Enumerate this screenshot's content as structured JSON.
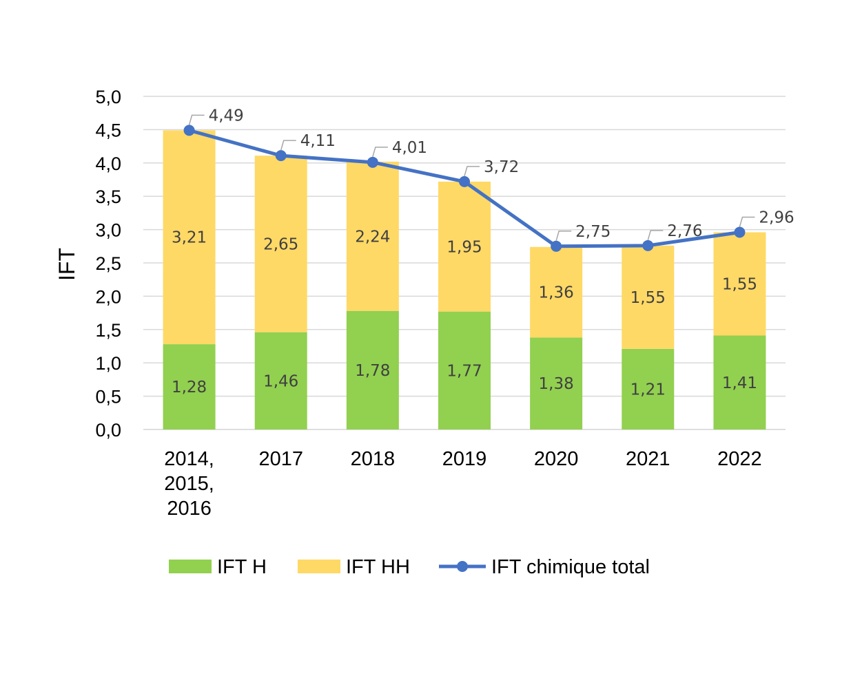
{
  "chart_data": {
    "type": "bar",
    "stacked": true,
    "title": "",
    "xlabel": "",
    "ylabel": "IFT",
    "ylim": [
      0,
      5
    ],
    "yticks": [
      "0,0",
      "0,5",
      "1,0",
      "1,5",
      "2,0",
      "2,5",
      "3,0",
      "3,5",
      "4,0",
      "4,5",
      "5,0"
    ],
    "grid": true,
    "legend_position": "bottom",
    "categories": [
      [
        "2014,",
        "2015,",
        "2016"
      ],
      [
        "2017"
      ],
      [
        "2018"
      ],
      [
        "2019"
      ],
      [
        "2020"
      ],
      [
        "2021"
      ],
      [
        "2022"
      ]
    ],
    "series": [
      {
        "name": "IFT H",
        "kind": "bar",
        "color": "#92D050",
        "values": [
          1.28,
          1.46,
          1.78,
          1.77,
          1.38,
          1.21,
          1.41
        ],
        "labels": [
          "1,28",
          "1,46",
          "1,78",
          "1,77",
          "1,38",
          "1,21",
          "1,41"
        ]
      },
      {
        "name": "IFT HH",
        "kind": "bar",
        "color": "#FFD966",
        "values": [
          3.21,
          2.65,
          2.24,
          1.95,
          1.36,
          1.55,
          1.55
        ],
        "labels": [
          "3,21",
          "2,65",
          "2,24",
          "1,95",
          "1,36",
          "1,55",
          "1,55"
        ]
      },
      {
        "name": "IFT chimique total",
        "kind": "line",
        "color": "#4472C4",
        "values": [
          4.49,
          4.11,
          4.01,
          3.72,
          2.75,
          2.76,
          2.96
        ],
        "labels": [
          "4,49",
          "4,11",
          "4,01",
          "3,72",
          "2,75",
          "2,76",
          "2,96"
        ]
      }
    ]
  }
}
